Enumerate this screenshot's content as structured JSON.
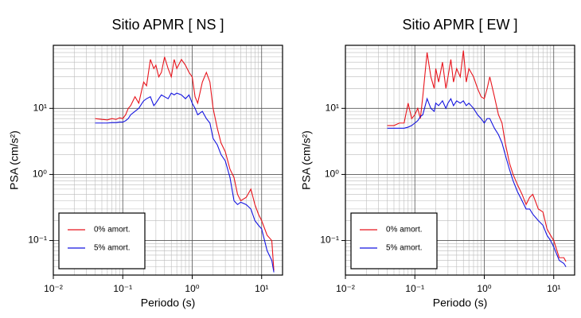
{
  "chart_data": [
    {
      "type": "line",
      "title": "Sitio APMR [ NS ]",
      "xlabel": "Periodo (s)",
      "ylabel": "PSA (cm/s²)",
      "log_x": true,
      "log_y": true,
      "grid": true,
      "legend": "lower left",
      "xlim": [
        0.01,
        20
      ],
      "ylim": [
        0.03,
        90
      ],
      "xticks": [
        {
          "value": 0.01,
          "label": "10⁻²"
        },
        {
          "value": 0.1,
          "label": "10⁻¹"
        },
        {
          "value": 1,
          "label": "10⁰"
        },
        {
          "value": 10,
          "label": "10¹"
        }
      ],
      "yticks": [
        {
          "value": 0.1,
          "label": "10⁻¹"
        },
        {
          "value": 1,
          "label": "10⁰"
        },
        {
          "value": 10,
          "label": "10¹"
        }
      ],
      "xminorticks": [
        0.02,
        0.03,
        0.04,
        0.05,
        0.06,
        0.07,
        0.08,
        0.09,
        0.2,
        0.3,
        0.4,
        0.5,
        0.6,
        0.7,
        0.8,
        0.9,
        2,
        3,
        4,
        5,
        6,
        7,
        8,
        9,
        20
      ],
      "yminorticks": [
        0.04,
        0.05,
        0.06,
        0.07,
        0.08,
        0.09,
        0.2,
        0.3,
        0.4,
        0.5,
        0.6,
        0.7,
        0.8,
        0.9,
        2,
        3,
        4,
        5,
        6,
        7,
        8,
        9,
        20,
        30,
        40,
        50,
        60,
        70,
        80,
        90
      ],
      "x": [
        0.04,
        0.05,
        0.06,
        0.07,
        0.08,
        0.09,
        0.1,
        0.11,
        0.12,
        0.13,
        0.15,
        0.17,
        0.19,
        0.2,
        0.22,
        0.25,
        0.28,
        0.3,
        0.33,
        0.36,
        0.4,
        0.45,
        0.5,
        0.55,
        0.6,
        0.7,
        0.8,
        0.9,
        1.0,
        1.1,
        1.2,
        1.4,
        1.6,
        1.8,
        2.0,
        2.3,
        2.6,
        3.0,
        3.5,
        4,
        4.5,
        5,
        6,
        7,
        8,
        9,
        10,
        12,
        14,
        15
      ],
      "series": [
        {
          "name": "0% amort.",
          "color": "#e8141c",
          "values": [
            7,
            6.8,
            6.7,
            7,
            6.8,
            7.2,
            7,
            8,
            10,
            11,
            15,
            12,
            20,
            25,
            22,
            55,
            40,
            45,
            30,
            35,
            60,
            40,
            30,
            55,
            40,
            55,
            45,
            35,
            30,
            15,
            12,
            25,
            35,
            25,
            10,
            5,
            3,
            2.2,
            1.2,
            0.9,
            0.5,
            0.4,
            0.45,
            0.6,
            0.35,
            0.25,
            0.2,
            0.12,
            0.1,
            0.035
          ]
        },
        {
          "name": "5% amort.",
          "color": "#1414e0",
          "values": [
            6,
            6,
            6,
            6.1,
            6.1,
            6.2,
            6.2,
            6.5,
            7,
            8,
            9,
            10,
            12,
            13,
            14,
            15,
            11,
            12,
            14,
            16,
            15,
            14,
            17,
            16,
            17,
            16,
            14,
            16,
            12,
            10,
            8,
            9,
            7,
            6,
            3.5,
            2.8,
            2,
            1.6,
            0.9,
            0.4,
            0.35,
            0.38,
            0.35,
            0.3,
            0.2,
            0.17,
            0.15,
            0.07,
            0.05,
            0.033
          ]
        }
      ]
    },
    {
      "type": "line",
      "title": "Sitio APMR [ EW ]",
      "xlabel": "Periodo (s)",
      "ylabel": "PSA (cm/s²)",
      "log_x": true,
      "log_y": true,
      "grid": true,
      "legend": "lower left",
      "xlim": [
        0.01,
        20
      ],
      "ylim": [
        0.03,
        90
      ],
      "xticks": [
        {
          "value": 0.01,
          "label": "10⁻²"
        },
        {
          "value": 0.1,
          "label": "10⁻¹"
        },
        {
          "value": 1,
          "label": "10⁰"
        },
        {
          "value": 10,
          "label": "10¹"
        }
      ],
      "yticks": [
        {
          "value": 0.1,
          "label": "10⁻¹"
        },
        {
          "value": 1,
          "label": "10⁰"
        },
        {
          "value": 10,
          "label": "10¹"
        }
      ],
      "xminorticks": [
        0.02,
        0.03,
        0.04,
        0.05,
        0.06,
        0.07,
        0.08,
        0.09,
        0.2,
        0.3,
        0.4,
        0.5,
        0.6,
        0.7,
        0.8,
        0.9,
        2,
        3,
        4,
        5,
        6,
        7,
        8,
        9,
        20
      ],
      "yminorticks": [
        0.04,
        0.05,
        0.06,
        0.07,
        0.08,
        0.09,
        0.2,
        0.3,
        0.4,
        0.5,
        0.6,
        0.7,
        0.8,
        0.9,
        2,
        3,
        4,
        5,
        6,
        7,
        8,
        9,
        20,
        30,
        40,
        50,
        60,
        70,
        80,
        90
      ],
      "x": [
        0.04,
        0.05,
        0.06,
        0.07,
        0.08,
        0.09,
        0.1,
        0.11,
        0.12,
        0.13,
        0.15,
        0.17,
        0.19,
        0.2,
        0.22,
        0.25,
        0.28,
        0.3,
        0.33,
        0.36,
        0.4,
        0.45,
        0.5,
        0.55,
        0.6,
        0.7,
        0.8,
        0.9,
        1.0,
        1.1,
        1.2,
        1.4,
        1.6,
        1.8,
        2.0,
        2.3,
        2.6,
        3.0,
        3.5,
        4,
        4.5,
        5,
        6,
        7,
        8,
        9,
        10,
        12,
        14,
        15
      ],
      "series": [
        {
          "name": "0% amort.",
          "color": "#e8141c",
          "values": [
            5.5,
            5.5,
            6,
            6,
            12,
            7,
            8,
            10,
            7,
            15,
            70,
            30,
            20,
            40,
            25,
            50,
            20,
            30,
            55,
            25,
            40,
            30,
            75,
            25,
            40,
            30,
            20,
            15,
            14,
            20,
            30,
            15,
            8,
            6,
            3,
            1.5,
            1.0,
            0.7,
            0.5,
            0.35,
            0.45,
            0.5,
            0.3,
            0.27,
            0.15,
            0.12,
            0.1,
            0.055,
            0.055,
            0.048
          ]
        },
        {
          "name": "5% amort.",
          "color": "#1414e0",
          "values": [
            5,
            5,
            5,
            5,
            5.2,
            5.5,
            6,
            6.5,
            7.5,
            8,
            14,
            10,
            9,
            12,
            11,
            13,
            10,
            12,
            14,
            11,
            13,
            12,
            13,
            11,
            12,
            10,
            8,
            7,
            6,
            7,
            7,
            5,
            4,
            3,
            2,
            1.2,
            0.8,
            0.55,
            0.4,
            0.3,
            0.3,
            0.25,
            0.2,
            0.17,
            0.12,
            0.1,
            0.08,
            0.05,
            0.045,
            0.04
          ]
        }
      ]
    }
  ]
}
